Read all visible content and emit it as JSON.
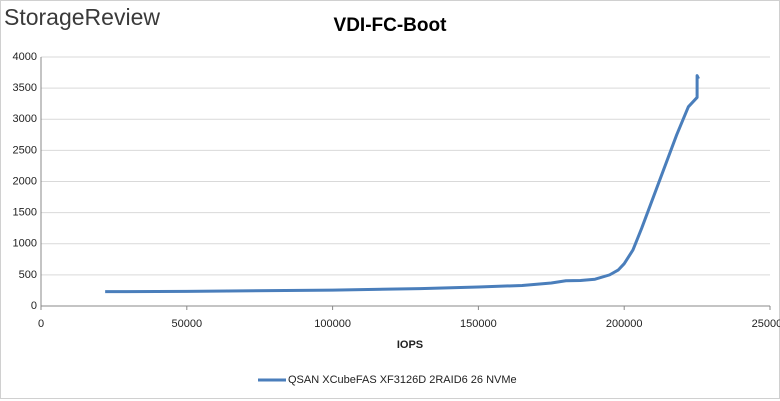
{
  "logo": "StorageReview",
  "chart_data": {
    "type": "line",
    "title": "VDI-FC-Boot",
    "xlabel": "IOPS",
    "xlim": [
      0,
      250000
    ],
    "xticks": [
      0,
      50000,
      100000,
      150000,
      200000,
      250000
    ],
    "ylim": [
      0,
      4000
    ],
    "yticks": [
      0,
      500,
      1000,
      1500,
      2000,
      2500,
      3000,
      3500,
      4000
    ],
    "grid": true,
    "legend": "bottom",
    "series": [
      {
        "name": "QSAN XCubeFAS XF3126D 2RAID6 26 NVMe",
        "color": "#4a7ebb",
        "x": [
          22000,
          50000,
          100000,
          130000,
          150000,
          165000,
          175000,
          180000,
          185000,
          190000,
          195000,
          198000,
          200000,
          203000,
          206000,
          210000,
          214000,
          218000,
          222000,
          225000,
          225000,
          225500
        ],
        "values": [
          230,
          235,
          255,
          280,
          305,
          330,
          370,
          405,
          410,
          430,
          500,
          580,
          680,
          900,
          1250,
          1750,
          2250,
          2750,
          3200,
          3350,
          3700,
          3650
        ]
      }
    ]
  }
}
